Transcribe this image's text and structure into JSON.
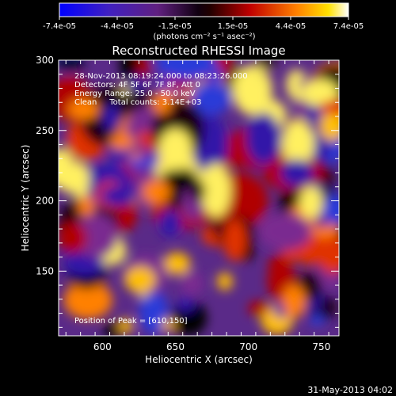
{
  "colorbar": {
    "tick_labels": [
      "-7.4e-05",
      "-4.4e-05",
      "-1.5e-05",
      "1.5e-05",
      "4.4e-05",
      "7.4e-05"
    ],
    "unit_label": "(photons cm⁻² s⁻¹ asec⁻²)",
    "range": [
      -7.4e-05,
      7.4e-05
    ]
  },
  "chart_data": {
    "type": "heatmap",
    "title": "Reconstructed RHESSI Image",
    "xlabel": "Heliocentric X (arcsec)",
    "ylabel": "Heliocentric Y (arcsec)",
    "xlim": [
      570,
      762
    ],
    "ylim": [
      104,
      300
    ],
    "xticks": [
      "600",
      "650",
      "700",
      "750"
    ],
    "yticks": [
      "150",
      "200",
      "250",
      "300"
    ],
    "grid": false,
    "annotations": [
      "28-Nov-2013 08:19:24.000 to 08:23:26.000",
      "Detectors: 4F 5F 6F 7F 8F, Att 0",
      "Energy Range: 25.0 - 50.0 keV",
      "Clean     Total counts: 3.14E+03"
    ],
    "peak_label": "Position of Peak = [610,150]",
    "peak_position": [
      610,
      150
    ]
  },
  "footer": {
    "date": "31-May-2013 04:02"
  }
}
